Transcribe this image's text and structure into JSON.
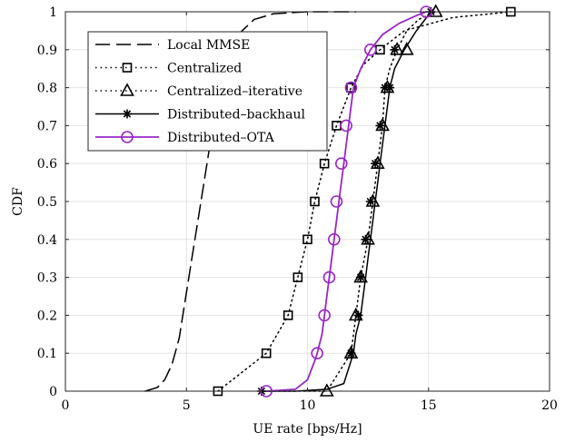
{
  "chart_data": {
    "type": "line",
    "xlabel": "UE rate [bps/Hz]",
    "ylabel": "CDF",
    "xlim": [
      0,
      20
    ],
    "ylim": [
      0,
      1
    ],
    "xticks": [
      "0",
      "5",
      "10",
      "15",
      "20"
    ],
    "yticks": [
      "0",
      "0.1",
      "0.2",
      "0.3",
      "0.4",
      "0.5",
      "0.6",
      "0.7",
      "0.8",
      "0.9",
      "1"
    ],
    "grid": true,
    "legend_position": "top-left",
    "series": [
      {
        "name": "Local MMSE",
        "color": "#000000",
        "line_style": "dashed",
        "marker": "none",
        "x": [
          3.3,
          3.8,
          4.1,
          4.4,
          4.7,
          4.9,
          5.1,
          5.3,
          5.5,
          5.7,
          5.9,
          6.1,
          6.3,
          6.6,
          6.9,
          7.3,
          7.8,
          8.6,
          10.0,
          12.0
        ],
        "y": [
          0.0,
          0.01,
          0.03,
          0.07,
          0.14,
          0.22,
          0.3,
          0.38,
          0.46,
          0.54,
          0.62,
          0.7,
          0.77,
          0.85,
          0.91,
          0.95,
          0.98,
          0.995,
          1.0,
          1.0
        ]
      },
      {
        "name": "Centralized",
        "color": "#000000",
        "line_style": "dotted",
        "marker": "square",
        "x": [
          6.3,
          8.3,
          9.2,
          9.6,
          10.0,
          10.3,
          10.7,
          11.2,
          11.8,
          12.3,
          13.0,
          14.0,
          16.0,
          18.4
        ],
        "y": [
          0.0,
          0.1,
          0.2,
          0.3,
          0.4,
          0.5,
          0.6,
          0.7,
          0.8,
          0.86,
          0.9,
          0.95,
          0.985,
          1.0
        ],
        "markers_x": [
          6.3,
          8.3,
          9.2,
          9.6,
          10.0,
          10.3,
          10.7,
          11.2,
          11.8,
          13.0,
          18.4
        ],
        "markers_y": [
          0.0,
          0.1,
          0.2,
          0.3,
          0.4,
          0.5,
          0.6,
          0.7,
          0.8,
          0.9,
          1.0
        ]
      },
      {
        "name": "Centralized–iterative",
        "color": "#000000",
        "line_style": "dotted",
        "marker": "triangle",
        "x": [
          8.2,
          10.8,
          11.8,
          12.0,
          12.2,
          12.5,
          12.7,
          12.9,
          13.1,
          13.2,
          13.4,
          13.7,
          14.1,
          14.6,
          15.3
        ],
        "y": [
          0.0,
          0.0,
          0.1,
          0.2,
          0.3,
          0.4,
          0.5,
          0.6,
          0.7,
          0.8,
          0.85,
          0.9,
          0.95,
          0.98,
          1.0
        ],
        "markers_x": [
          10.8,
          11.8,
          12.0,
          12.2,
          12.5,
          12.7,
          12.9,
          13.1,
          13.3,
          13.7,
          14.1,
          15.3
        ],
        "markers_y": [
          0.0,
          0.1,
          0.2,
          0.3,
          0.4,
          0.5,
          0.6,
          0.7,
          0.8,
          0.9,
          0.9,
          1.0
        ]
      },
      {
        "name": "Distributed–backhaul",
        "color": "#000000",
        "line_style": "solid",
        "marker": "asterisk",
        "x": [
          8.1,
          9.5,
          10.8,
          11.5,
          11.7,
          11.9,
          12.0,
          12.2,
          12.3,
          12.4,
          12.5,
          12.6,
          12.7,
          12.8,
          12.9,
          13.0,
          13.2,
          13.4,
          13.6,
          14.0,
          14.5,
          15.1
        ],
        "y": [
          0.0,
          0.0,
          0.005,
          0.02,
          0.06,
          0.1,
          0.15,
          0.2,
          0.25,
          0.3,
          0.35,
          0.4,
          0.45,
          0.5,
          0.55,
          0.6,
          0.7,
          0.8,
          0.85,
          0.9,
          0.95,
          1.0
        ],
        "markers_x": [
          8.1,
          11.8,
          12.1,
          12.2,
          12.4,
          12.6,
          12.8,
          13.0,
          13.2,
          13.4,
          13.6,
          15.1
        ],
        "markers_y": [
          0.0,
          0.1,
          0.2,
          0.3,
          0.4,
          0.5,
          0.6,
          0.7,
          0.8,
          0.8,
          0.9,
          1.0
        ]
      },
      {
        "name": "Distributed–OTA",
        "color": "#9a27c8",
        "line_style": "solid",
        "marker": "circle",
        "x": [
          8.3,
          9.5,
          10.0,
          10.3,
          10.4,
          10.6,
          10.7,
          10.8,
          10.9,
          11.0,
          11.1,
          11.2,
          11.3,
          11.4,
          11.5,
          11.7,
          11.9,
          12.2,
          12.6,
          13.1,
          13.8,
          14.5,
          14.9
        ],
        "y": [
          0.0,
          0.005,
          0.03,
          0.08,
          0.1,
          0.15,
          0.2,
          0.25,
          0.3,
          0.35,
          0.4,
          0.45,
          0.5,
          0.55,
          0.6,
          0.7,
          0.8,
          0.85,
          0.9,
          0.94,
          0.97,
          0.99,
          1.0
        ],
        "markers_x": [
          8.3,
          10.4,
          10.7,
          10.9,
          11.1,
          11.2,
          11.4,
          11.6,
          11.8,
          12.6,
          14.9
        ],
        "markers_y": [
          0.0,
          0.1,
          0.2,
          0.3,
          0.4,
          0.5,
          0.6,
          0.7,
          0.8,
          0.9,
          1.0
        ]
      }
    ]
  }
}
